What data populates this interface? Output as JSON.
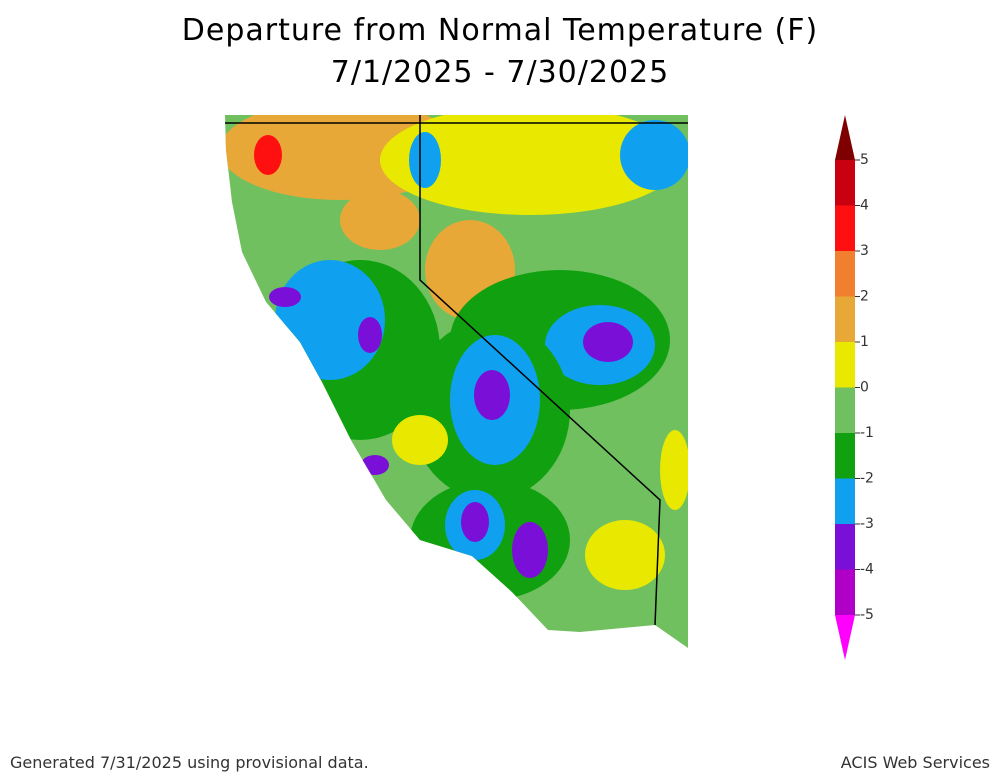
{
  "title": [
    "Departure from Normal Temperature (F)",
    "7/1/2025 - 7/30/2025"
  ],
  "legend": {
    "ticks": [
      5,
      4,
      3,
      2,
      1,
      0,
      -1,
      -2,
      -3,
      -4,
      -5
    ],
    "colors": [
      "#7f0000",
      "#c8000f",
      "#ff1010",
      "#f08030",
      "#e8a838",
      "#e8e800",
      "#70c060",
      "#10a010",
      "#10a0f0",
      "#7a10d8",
      "#b000c8",
      "#ff00ff"
    ]
  },
  "footer": {
    "left": "Generated 7/31/2025  using provisional data.",
    "right": "ACIS Web Services"
  }
}
